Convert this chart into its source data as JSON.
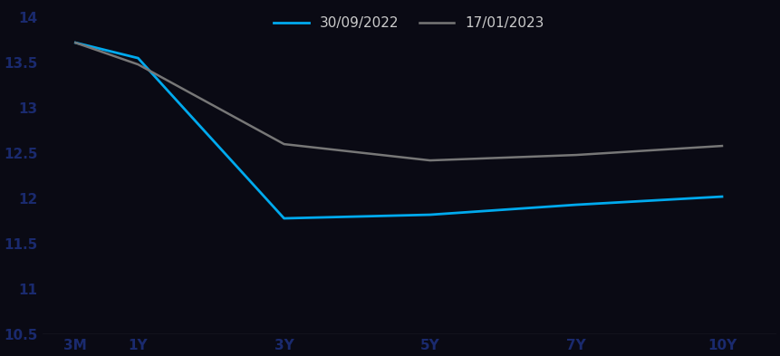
{
  "x_labels": [
    "3M",
    "1Y",
    "3Y",
    "5Y",
    "7Y",
    "10Y"
  ],
  "x_positions": [
    0,
    0.75,
    2.5,
    4.25,
    6.0,
    7.75
  ],
  "series": [
    {
      "label": "30/09/2022",
      "color": "#00AAEE",
      "linewidth": 2.0,
      "values": [
        13.72,
        13.55,
        11.78,
        11.82,
        11.93,
        12.02
      ]
    },
    {
      "label": "17/01/2023",
      "color": "#777777",
      "linewidth": 1.8,
      "values": [
        13.72,
        13.48,
        12.6,
        12.42,
        12.48,
        12.58
      ]
    }
  ],
  "ylim": [
    10.5,
    14.15
  ],
  "yticks": [
    10.5,
    11.0,
    11.5,
    12.0,
    12.5,
    13.0,
    13.5,
    14.0
  ],
  "background_color": "#0a0a14",
  "text_color": "#1a2a6e",
  "spine_color": "#cccccc",
  "bottom_line_color": "#aaaaaa",
  "legend_text_color": "#cccccc"
}
